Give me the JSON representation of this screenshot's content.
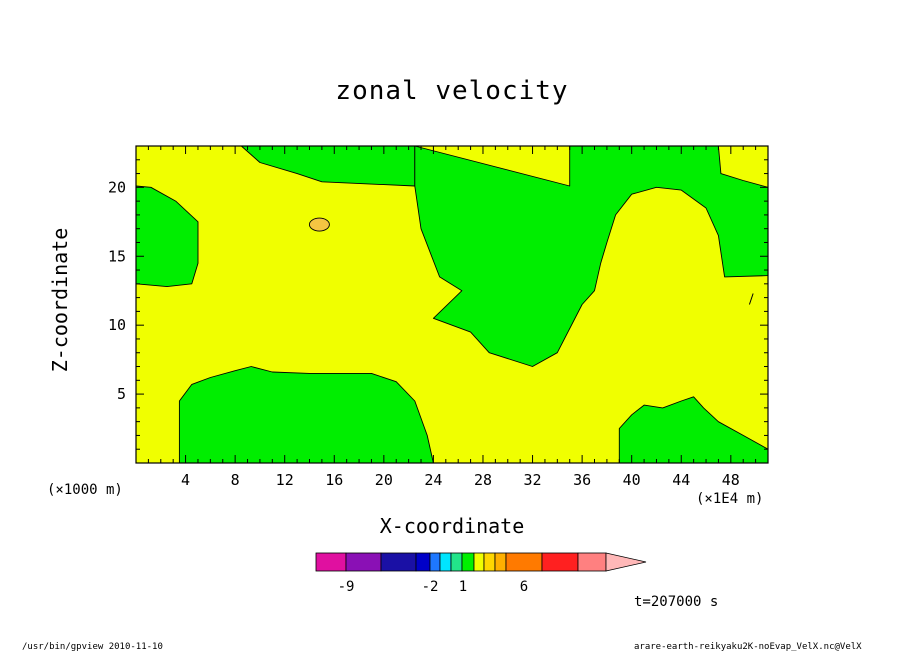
{
  "chart_data": {
    "type": "heatmap",
    "title": "zonal velocity",
    "xlabel": "X-coordinate",
    "ylabel": "Z-coordinate",
    "x_unit_label": "(×1000 m)",
    "x_unit_label_right": "(×1E4 m)",
    "xlim": [
      0,
      51
    ],
    "ylim": [
      0,
      23
    ],
    "x_ticks": [
      4,
      8,
      12,
      16,
      20,
      24,
      28,
      32,
      36,
      40,
      44,
      48
    ],
    "y_ticks": [
      5,
      10,
      15,
      20
    ],
    "grid": false,
    "background_level_color": "#f0ff00",
    "region_level_color": "#00ee00",
    "contour_color": "#000000",
    "small_anomaly_color": "#f5c542",
    "regions": [
      {
        "name": "green-upper-left",
        "level": "green",
        "points": [
          [
            0,
            20.1
          ],
          [
            1.2,
            20.0
          ],
          [
            3.2,
            19.0
          ],
          [
            5.0,
            17.5
          ],
          [
            5.0,
            14.5
          ],
          [
            4.5,
            13.0
          ],
          [
            2.5,
            12.8
          ],
          [
            0,
            13.0
          ]
        ]
      },
      {
        "name": "green-top-mid",
        "level": "green",
        "points": [
          [
            8.5,
            23
          ],
          [
            22.5,
            23
          ],
          [
            22.5,
            20.1
          ],
          [
            15,
            20.4
          ],
          [
            13,
            21.0
          ],
          [
            10,
            21.8
          ]
        ]
      },
      {
        "name": "green-right-upper",
        "level": "green",
        "points": [
          [
            22.5,
            23
          ],
          [
            22.5,
            20.1
          ],
          [
            23.0,
            17.0
          ],
          [
            24.5,
            13.5
          ],
          [
            26.3,
            12.5
          ],
          [
            24,
            10.5
          ],
          [
            25.5,
            10.0
          ],
          [
            27,
            9.5
          ],
          [
            28.5,
            8.0
          ],
          [
            32,
            7.0
          ],
          [
            34,
            8.0
          ],
          [
            36,
            11.5
          ],
          [
            37,
            12.5
          ],
          [
            37.5,
            14.5
          ],
          [
            38,
            16.0
          ],
          [
            38.7,
            18.0
          ],
          [
            40,
            19.5
          ],
          [
            42,
            20.0
          ],
          [
            44,
            19.8
          ],
          [
            46,
            18.5
          ],
          [
            47,
            16.5
          ],
          [
            47.5,
            13.5
          ],
          [
            51,
            13.6
          ],
          [
            51,
            20.0
          ],
          [
            49,
            20.5
          ],
          [
            47.2,
            21.0
          ],
          [
            47,
            23
          ],
          [
            35,
            23
          ],
          [
            35,
            20.1
          ]
        ]
      },
      {
        "name": "green-bottom-left",
        "level": "green",
        "points": [
          [
            3.5,
            0
          ],
          [
            3.5,
            4.5
          ],
          [
            4.5,
            5.7
          ],
          [
            6,
            6.2
          ],
          [
            8,
            6.7
          ],
          [
            9.3,
            7.0
          ],
          [
            11,
            6.6
          ],
          [
            14,
            6.5
          ],
          [
            19,
            6.5
          ],
          [
            21,
            5.9
          ],
          [
            22.5,
            4.5
          ],
          [
            23.5,
            2.0
          ],
          [
            24,
            0
          ]
        ]
      },
      {
        "name": "green-bottom-right",
        "level": "green",
        "points": [
          [
            39,
            0
          ],
          [
            39,
            2.5
          ],
          [
            40,
            3.5
          ],
          [
            41,
            4.2
          ],
          [
            42.5,
            4.0
          ],
          [
            44,
            4.5
          ],
          [
            45,
            4.8
          ],
          [
            45.8,
            4.0
          ],
          [
            47,
            3.0
          ],
          [
            49,
            2.0
          ],
          [
            51,
            1.0
          ],
          [
            51,
            0
          ]
        ]
      }
    ],
    "colorbar": {
      "colors": [
        "#e010a0",
        "#8a10b5",
        "#1a10a5",
        "#0000c8",
        "#1e78ff",
        "#00e5ff",
        "#22e58a",
        "#00f000",
        "#f0ff00",
        "#ffd700",
        "#ffb000",
        "#ff7a00",
        "#ff2020",
        "#ff8080",
        "#ffb8b8"
      ],
      "tick_labels": [
        "-9",
        "-2",
        "1",
        "6"
      ]
    },
    "time_label": "t=207000 s"
  },
  "footer": {
    "left": "/usr/bin/gpview   2010-11-10",
    "right": "arare-earth-reikyaku2K-noEvap_VelX.nc@VelX"
  }
}
